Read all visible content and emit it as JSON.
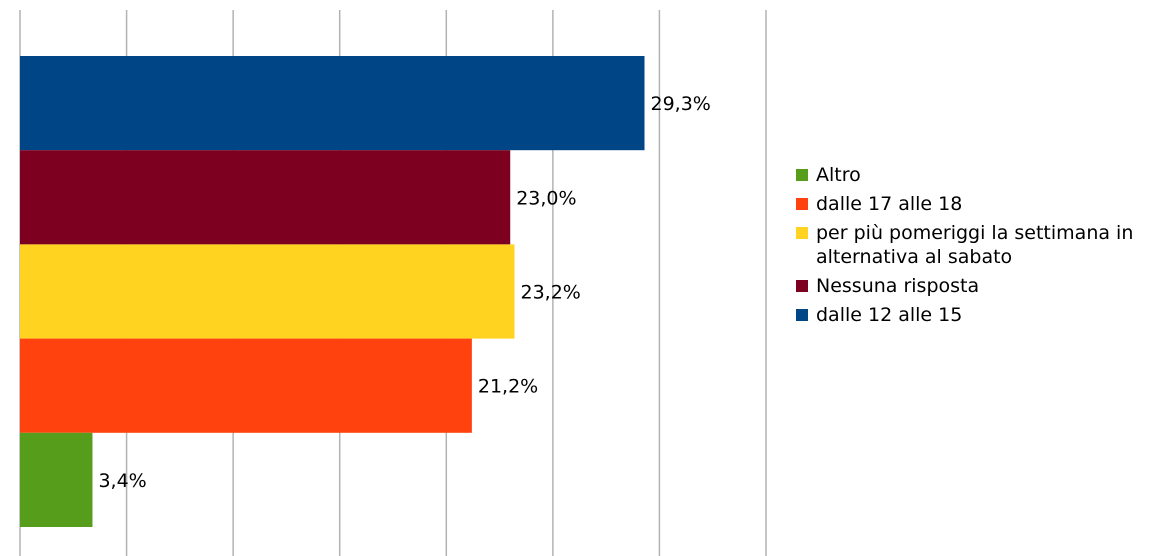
{
  "chart_data": {
    "type": "bar",
    "orientation": "horizontal",
    "categories": [
      "dalle 12 alle 15",
      "Nessuna risposta",
      "per più pomeriggi la settimana in alternativa al sabato",
      "dalle 17 alle 18",
      "Altro"
    ],
    "values": [
      29.3,
      23.0,
      23.2,
      21.2,
      3.4
    ],
    "value_labels": [
      "29,3%",
      "23,0%",
      "23,2%",
      "21,2%",
      "3,4%"
    ],
    "colors": [
      "#004586",
      "#7e0021",
      "#ffd320",
      "#ff420e",
      "#579d1c"
    ],
    "xlim": [
      0,
      35
    ],
    "grid": true,
    "legend_position": "right",
    "legend": [
      {
        "label": "Altro",
        "color": "#579d1c"
      },
      {
        "label": "dalle 17 alle 18",
        "color": "#ff420e"
      },
      {
        "label": "per più pomeriggi la settimana in alternativa al sabato",
        "color": "#ffd320"
      },
      {
        "label": "Nessuna risposta",
        "color": "#7e0021"
      },
      {
        "label": "dalle 12 alle 15",
        "color": "#004586"
      }
    ]
  }
}
